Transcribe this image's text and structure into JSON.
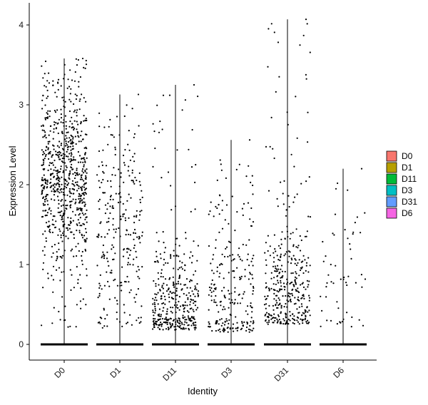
{
  "chart_data": {
    "type": "scatter",
    "subtype": "violin-jitter (Seurat VlnPlot)",
    "xlabel": "Identity",
    "ylabel": "Expression Level",
    "ylim": [
      -0.25,
      4.15
    ],
    "yticks": [
      0,
      1,
      2,
      3,
      4
    ],
    "categories": [
      "D0",
      "D1",
      "D11",
      "D3",
      "D31",
      "D6"
    ],
    "legend": {
      "position": "right",
      "entries": [
        {
          "name": "D0",
          "color": "#F8766D"
        },
        {
          "name": "D1",
          "color": "#B79F00"
        },
        {
          "name": "D11",
          "color": "#00BA38"
        },
        {
          "name": "D3",
          "color": "#00BFC4"
        },
        {
          "name": "D31",
          "color": "#619CFF"
        },
        {
          "name": "D6",
          "color": "#F564E3"
        }
      ]
    },
    "groups": [
      {
        "name": "D0",
        "max": 3.58,
        "nonzero_points": 760,
        "center": 2.1,
        "spread": 0.55,
        "min_nonzero": 0.2
      },
      {
        "name": "D1",
        "max": 3.13,
        "nonzero_points": 270,
        "center": 1.3,
        "spread": 0.7,
        "min_nonzero": 0.2
      },
      {
        "name": "D11",
        "max": 3.25,
        "nonzero_points": 380,
        "center": 0.45,
        "spread": 0.35,
        "min_nonzero": 0.18
      },
      {
        "name": "D3",
        "max": 2.56,
        "nonzero_points": 250,
        "center": 0.6,
        "spread": 0.6,
        "min_nonzero": 0.15
      },
      {
        "name": "D31",
        "max": 4.07,
        "nonzero_points": 380,
        "center": 0.65,
        "spread": 0.45,
        "min_nonzero": 0.25
      },
      {
        "name": "D6",
        "max": 2.2,
        "nonzero_points": 55,
        "center": 0.7,
        "spread": 0.55,
        "min_nonzero": 0.2
      }
    ]
  }
}
